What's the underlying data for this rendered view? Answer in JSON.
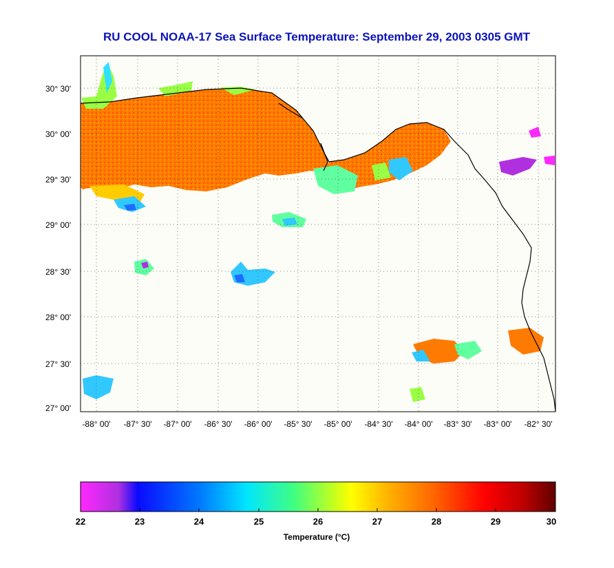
{
  "title": "RU COOL  NOAA-17  Sea Surface Temperature:  September 29, 2003 0305 GMT",
  "map": {
    "lat_ticks": [
      "30° 30'",
      "30° 00'",
      "29° 30'",
      "29° 00'",
      "28° 30'",
      "28° 00'",
      "27° 30'",
      "27° 00'"
    ],
    "lon_ticks": [
      "-88° 00'",
      "-87° 30'",
      "-87° 00'",
      "-86° 30'",
      "-86° 00'",
      "-85° 30'",
      "-85° 00'",
      "-84° 30'",
      "-84° 00'",
      "-83° 30'",
      "-83° 00'",
      "-82° 30'"
    ],
    "land_color": "#ffffff",
    "coast_color": "#000000",
    "grid": "dotted"
  },
  "colorbar": {
    "ticks": [
      "22",
      "23",
      "24",
      "25",
      "26",
      "27",
      "28",
      "29",
      "30"
    ],
    "label": "Temperature (°C)",
    "range": [
      22,
      30
    ],
    "colors": [
      "#ff28ff",
      "#a030d8",
      "#1010ff",
      "#0060ff",
      "#00b0ff",
      "#00ffff",
      "#20ffb0",
      "#80ff40",
      "#ffff00",
      "#ffc000",
      "#ff8000",
      "#ff4000",
      "#ff0000",
      "#c00000",
      "#600000"
    ]
  }
}
